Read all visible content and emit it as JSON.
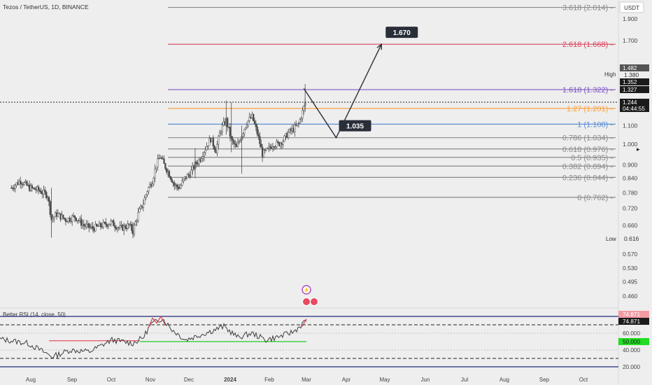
{
  "header": {
    "symbol_title": "Tezos / TetherUS, 1D, BINANCE",
    "currency": "USDT"
  },
  "colors": {
    "bg": "#eeeeee",
    "candle": "#4a4a4a",
    "fib_default": "#8a8a8a",
    "fib_2618": "#d9455f",
    "fib_1618": "#7e57c2",
    "fib_127": "#f7a340",
    "fib_1": "#5b8fd6",
    "projection": "#2a2e39",
    "rsi_line": "#3f3f3f",
    "rsi_red": "#e04050",
    "rsi_green": "#22cc22",
    "rsi_band": "#1f2c7a"
  },
  "chart_data": [
    {
      "type": "candlestick",
      "title": "Tezos / TetherUS, 1D, BINANCE",
      "y_axis": {
        "scale": "log",
        "unit": "USDT",
        "ticks": [
          "1.900",
          "1.700",
          "1.500",
          "1.380",
          "1.100",
          "1.000",
          "0.900",
          "0.840",
          "0.780",
          "0.720",
          "0.660",
          "0.570",
          "0.530",
          "0.495",
          "0.460"
        ]
      },
      "x_axis": {
        "ticks": [
          "Aug",
          "Sep",
          "Oct",
          "Nov",
          "Dec",
          "2024",
          "Feb",
          "Mar",
          "Apr",
          "May",
          "Jun",
          "Jul",
          "Aug",
          "Sep",
          "Oct"
        ]
      },
      "fibonacci_levels": [
        {
          "label": "3.618 (2.014)",
          "value": 2.014,
          "color": "#8a8a8a"
        },
        {
          "label": "2.618 (1.668)",
          "value": 1.668,
          "color": "#d9455f"
        },
        {
          "label": "1.618 (1.322)",
          "value": 1.322,
          "color": "#7e57c2"
        },
        {
          "label": "1.27 (1.201)",
          "value": 1.201,
          "color": "#f7a340"
        },
        {
          "label": "1 (1.108)",
          "value": 1.108,
          "color": "#5b8fd6"
        },
        {
          "label": "0.786 (1.034)",
          "value": 1.034,
          "color": "#8a8a8a"
        },
        {
          "label": "0.618 (0.976)",
          "value": 0.976,
          "color": "#8a8a8a"
        },
        {
          "label": "0.5 (0.935)",
          "value": 0.935,
          "color": "#8a8a8a"
        },
        {
          "label": "0.382 (0.894)",
          "value": 0.894,
          "color": "#8a8a8a"
        },
        {
          "label": "0.236 (0.844)",
          "value": 0.844,
          "color": "#8a8a8a"
        },
        {
          "label": "0 (0.762)",
          "value": 0.762,
          "color": "#8a8a8a"
        }
      ],
      "price_badges": [
        {
          "label": "1.482",
          "style": "gray"
        },
        {
          "label": "High",
          "style": "plain"
        },
        {
          "label": "1.380",
          "style": "plain"
        },
        {
          "label": "1.352",
          "style": "dark"
        },
        {
          "label": "1.327",
          "style": "dark"
        },
        {
          "label": "1.244",
          "style": "dark"
        },
        {
          "label": "04:44:55",
          "style": "dark"
        },
        {
          "label": "Low",
          "style": "plain"
        },
        {
          "label": "0.616",
          "style": "plain"
        }
      ],
      "projection": {
        "path": [
          {
            "date": "2024-02-28",
            "value": 1.33
          },
          {
            "date": "2024-03-24",
            "value": 1.034
          },
          {
            "date": "2024-04-28",
            "value": 1.668
          }
        ],
        "targets": [
          "1.035",
          "1.670"
        ]
      },
      "price_series": {
        "x": [
          "Jul 17",
          "Jul 24",
          "Jul 31",
          "Aug 7",
          "Aug 14",
          "Aug 17",
          "Aug 21",
          "Aug 28",
          "Sep 4",
          "Sep 11",
          "Sep 18",
          "Sep 25",
          "Oct 2",
          "Oct 9",
          "Oct 16",
          "Oct 19",
          "Oct 23",
          "Oct 27",
          "Oct 30",
          "Nov 3",
          "Nov 6",
          "Nov 9",
          "Nov 12",
          "Nov 16",
          "Nov 20",
          "Nov 24",
          "Nov 28",
          "Dec 2",
          "Dec 6",
          "Dec 10",
          "Dec 14",
          "Dec 18",
          "Dec 22",
          "Dec 26",
          "Dec 30",
          "Jan 3",
          "Jan 7",
          "Jan 11",
          "Jan 15",
          "Jan 19",
          "Jan 23",
          "Jan 27",
          "Jan 31",
          "Feb 4",
          "Feb 8",
          "Feb 12",
          "Feb 16",
          "Feb 20",
          "Feb 24",
          "Feb 27",
          "Feb 29"
        ],
        "y": [
          0.8,
          0.83,
          0.8,
          0.79,
          0.77,
          0.68,
          0.7,
          0.68,
          0.69,
          0.66,
          0.65,
          0.66,
          0.67,
          0.65,
          0.66,
          0.64,
          0.7,
          0.74,
          0.79,
          0.83,
          0.9,
          0.94,
          0.9,
          0.86,
          0.81,
          0.8,
          0.84,
          0.86,
          0.9,
          0.93,
          0.98,
          1.03,
          0.97,
          1.08,
          1.13,
          1.02,
          0.98,
          1.05,
          1.12,
          1.15,
          1.06,
          0.95,
          0.97,
          1.0,
          1.0,
          1.02,
          1.06,
          1.08,
          1.11,
          1.18,
          1.24
        ]
      }
    },
    {
      "type": "line",
      "title": "Better RSI (14, close, 50)",
      "y_axis": {
        "ticks": [
          "74.871",
          "60.000",
          "50.000",
          "40.000",
          "20.000"
        ]
      },
      "levels": [
        80,
        70,
        60,
        50,
        40,
        30,
        20
      ],
      "current_value": "74.871",
      "series": {
        "x_start": "Jul 17",
        "x_end": "Feb 29"
      }
    }
  ]
}
